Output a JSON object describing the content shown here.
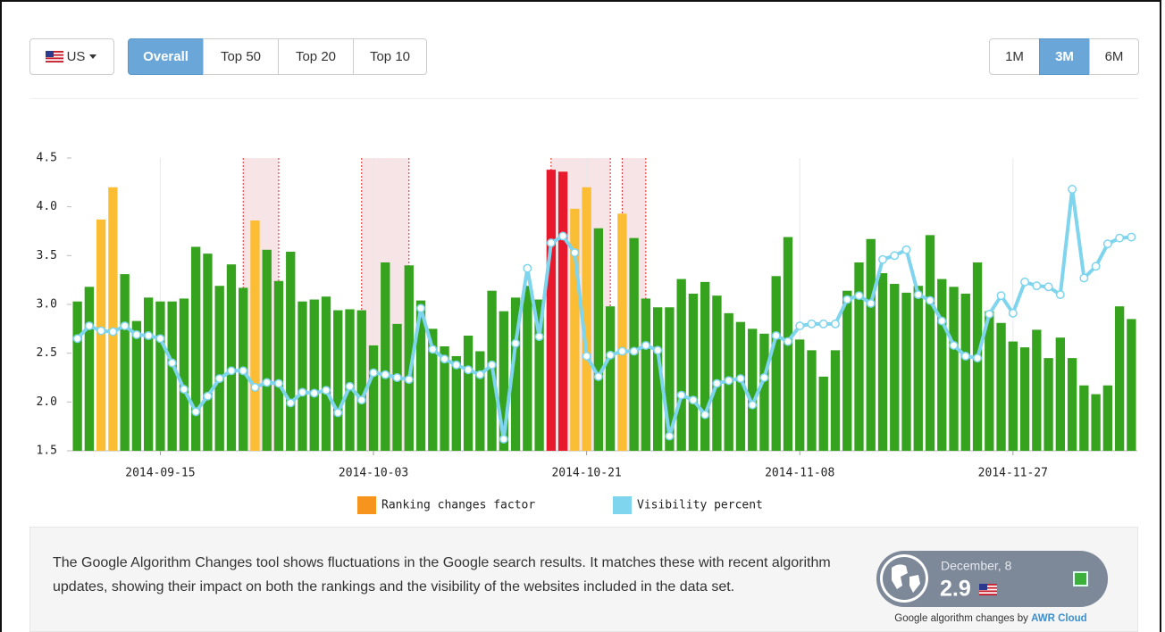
{
  "controls": {
    "country": "US",
    "range_tabs": [
      "Overall",
      "Top 50",
      "Top 20",
      "Top 10"
    ],
    "period_tabs": [
      "1M",
      "3M",
      "6M"
    ]
  },
  "chart_data": {
    "type": "bar",
    "categories": [
      null,
      null,
      null,
      null,
      null,
      null,
      null,
      "2014-09-15",
      null,
      null,
      null,
      null,
      null,
      null,
      null,
      null,
      null,
      null,
      null,
      null,
      null,
      null,
      null,
      null,
      null,
      "2014-10-03",
      null,
      null,
      null,
      null,
      null,
      null,
      null,
      null,
      null,
      null,
      null,
      null,
      null,
      null,
      null,
      null,
      null,
      "2014-10-21",
      null,
      null,
      null,
      null,
      null,
      null,
      null,
      null,
      null,
      null,
      null,
      null,
      null,
      null,
      null,
      null,
      null,
      "2014-11-08",
      null,
      null,
      null,
      null,
      null,
      null,
      null,
      null,
      null,
      null,
      null,
      null,
      null,
      null,
      null,
      null,
      null,
      "2014-11-27",
      null,
      null,
      null,
      null,
      null,
      null,
      null,
      null,
      null,
      null
    ],
    "series": [
      {
        "name": "Ranking changes factor",
        "type": "bar",
        "color": "#f7941d",
        "values": [
          3.03,
          3.18,
          3.87,
          4.2,
          3.31,
          2.83,
          3.07,
          3.03,
          3.03,
          3.06,
          3.59,
          3.52,
          3.19,
          3.41,
          3.17,
          3.86,
          3.56,
          3.24,
          3.54,
          3.03,
          3.05,
          3.08,
          2.94,
          2.95,
          2.94,
          2.58,
          3.43,
          2.8,
          3.4,
          3.04,
          2.75,
          2.57,
          2.47,
          2.68,
          2.52,
          3.14,
          2.93,
          3.07,
          3.19,
          3.05,
          4.38,
          4.36,
          3.98,
          4.2,
          3.78,
          2.98,
          3.93,
          3.68,
          3.06,
          2.97,
          2.97,
          3.26,
          3.11,
          3.23,
          3.09,
          2.91,
          2.82,
          2.75,
          2.7,
          3.29,
          3.69,
          2.64,
          2.53,
          2.26,
          2.53,
          3.14,
          3.43,
          3.67,
          3.32,
          3.21,
          3.12,
          3.19,
          3.71,
          3.26,
          3.18,
          3.11,
          3.43,
          2.93,
          2.81,
          2.62,
          2.56,
          2.74,
          2.45,
          2.66,
          2.45,
          2.17,
          2.08,
          2.17,
          2.98,
          2.85
        ],
        "point_colors": [
          "#36a31f",
          "#36a31f",
          "#fbbd34",
          "#fbbd34",
          "#36a31f",
          "#36a31f",
          "#36a31f",
          "#36a31f",
          "#36a31f",
          "#36a31f",
          "#36a31f",
          "#36a31f",
          "#36a31f",
          "#36a31f",
          "#36a31f",
          "#fbbd34",
          "#36a31f",
          "#36a31f",
          "#36a31f",
          "#36a31f",
          "#36a31f",
          "#36a31f",
          "#36a31f",
          "#36a31f",
          "#36a31f",
          "#36a31f",
          "#36a31f",
          "#36a31f",
          "#36a31f",
          "#36a31f",
          "#36a31f",
          "#36a31f",
          "#36a31f",
          "#36a31f",
          "#36a31f",
          "#36a31f",
          "#36a31f",
          "#36a31f",
          "#36a31f",
          "#36a31f",
          "#e8192c",
          "#e8192c",
          "#fbbd34",
          "#fbbd34",
          "#36a31f",
          "#36a31f",
          "#fbbd34",
          "#36a31f",
          "#36a31f",
          "#36a31f",
          "#36a31f",
          "#36a31f",
          "#36a31f",
          "#36a31f",
          "#36a31f",
          "#36a31f",
          "#36a31f",
          "#36a31f",
          "#36a31f",
          "#36a31f",
          "#36a31f",
          "#36a31f",
          "#36a31f",
          "#36a31f",
          "#36a31f",
          "#36a31f",
          "#36a31f",
          "#36a31f",
          "#36a31f",
          "#36a31f",
          "#36a31f",
          "#36a31f",
          "#36a31f",
          "#36a31f",
          "#36a31f",
          "#36a31f",
          "#36a31f",
          "#36a31f",
          "#36a31f",
          "#36a31f",
          "#36a31f",
          "#36a31f",
          "#36a31f",
          "#36a31f",
          "#36a31f",
          "#36a31f",
          "#36a31f",
          "#36a31f",
          "#36a31f",
          "#36a31f"
        ]
      },
      {
        "name": "Visibility percent",
        "type": "line",
        "color": "#7fd4ee",
        "values": [
          2.65,
          2.78,
          2.73,
          2.72,
          2.78,
          2.69,
          2.68,
          2.65,
          2.4,
          2.13,
          1.9,
          2.06,
          2.24,
          2.32,
          2.32,
          2.15,
          2.2,
          2.19,
          1.99,
          2.1,
          2.09,
          2.12,
          1.89,
          2.16,
          2.02,
          2.3,
          2.28,
          2.25,
          2.23,
          2.96,
          2.54,
          2.44,
          2.38,
          2.33,
          2.28,
          2.38,
          1.62,
          2.6,
          3.37,
          2.67,
          3.63,
          3.7,
          3.53,
          2.47,
          2.26,
          2.48,
          2.52,
          2.52,
          2.58,
          2.53,
          1.65,
          2.07,
          2.02,
          1.87,
          2.19,
          2.22,
          2.24,
          1.97,
          2.25,
          2.68,
          2.62,
          2.78,
          2.8,
          2.8,
          2.8,
          3.05,
          3.09,
          3.01,
          3.46,
          3.5,
          3.56,
          3.1,
          3.04,
          2.83,
          2.58,
          2.47,
          2.45,
          2.9,
          3.09,
          2.91,
          3.23,
          3.19,
          3.18,
          3.1,
          4.18,
          3.27,
          3.39,
          3.62,
          3.68,
          3.69
        ]
      }
    ],
    "highlight_ranges": [
      [
        14,
        17
      ],
      [
        24,
        28
      ],
      [
        40,
        45
      ],
      [
        46,
        48
      ]
    ],
    "ylim": [
      1.5,
      4.5
    ],
    "yticks": [
      1.5,
      {
        "value": 2,
        "label": "2.0"
      },
      2.5,
      {
        "value": 3,
        "label": "3.0"
      },
      3.5,
      {
        "value": 4,
        "label": "4.0"
      },
      4.5
    ],
    "grid": true
  },
  "description": "The Google Algorithm Changes tool shows fluctuations in the Google search results. It matches these with recent algorithm updates, showing their impact on both the rankings and the visibility of the websites included in the data set.",
  "widget": {
    "date": "December, 8",
    "value": 2.9,
    "caption": "Google algorithm changes by",
    "caption_link": "AWR Cloud"
  }
}
